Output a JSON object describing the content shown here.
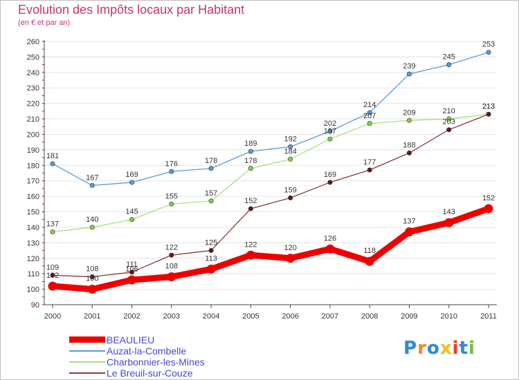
{
  "title": "Evolution des Impôts locaux par Habitant",
  "subtitle": "(en € et par an)",
  "chart_data": {
    "type": "line",
    "title": "Evolution des Impôts locaux par Habitant",
    "subtitle": "(en € et par an)",
    "xlabel": "",
    "ylabel": "",
    "ylim": [
      90,
      260
    ],
    "ytick_step": 10,
    "grid": "horizontal",
    "legend_position": "bottom-left",
    "categories": [
      "2000",
      "2001",
      "2002",
      "2003",
      "2004",
      "2005",
      "2006",
      "2007",
      "2008",
      "2009",
      "2010",
      "2011"
    ],
    "series": [
      {
        "name": "Auzat-la-Combelle",
        "color": "#5b9bd5",
        "marker": "#5b9bd5",
        "width": "thin",
        "values": [
          181,
          167,
          169,
          176,
          178,
          189,
          192,
          202,
          214,
          239,
          245,
          253
        ]
      },
      {
        "name": "Charbonnier-les-Mines",
        "color": "#a6e07e",
        "marker": "#7ed23f",
        "width": "thin",
        "values": [
          137,
          140,
          145,
          155,
          157,
          178,
          184,
          197,
          207,
          209,
          210,
          213
        ]
      },
      {
        "name": "Le Breuil-sur-Couze",
        "color": "#8b3a3a",
        "marker": "#5c1a1a",
        "width": "thin",
        "values": [
          109,
          108,
          111,
          122,
          125,
          152,
          159,
          169,
          177,
          188,
          203,
          213
        ]
      },
      {
        "name": "BEAULIEU",
        "color": "#ee0000",
        "marker": "#ee0000",
        "width": "thick",
        "values": [
          102,
          100,
          106,
          108,
          113,
          122,
          120,
          126,
          118,
          137,
          143,
          152
        ]
      }
    ]
  },
  "legend": [
    {
      "label": "BEAULIEU",
      "color": "#ee0000",
      "thick": true
    },
    {
      "label": "Auzat-la-Combelle",
      "color": "#5b9bd5",
      "thick": false
    },
    {
      "label": "Charbonnier-les-Mines",
      "color": "#a6e07e",
      "thick": false
    },
    {
      "label": "Le Breuil-sur-Couze",
      "color": "#8b3a3a",
      "thick": false
    }
  ],
  "logo": {
    "text": "Proxiti",
    "letters": [
      "P",
      "r",
      "o",
      "x",
      "i",
      "t",
      "i"
    ],
    "colors": [
      "#2e8bd6",
      "#f28c1e",
      "#2e8bd6",
      "#f2c31e",
      "#e8402a",
      "#2e8bd6",
      "#7ac043"
    ]
  }
}
